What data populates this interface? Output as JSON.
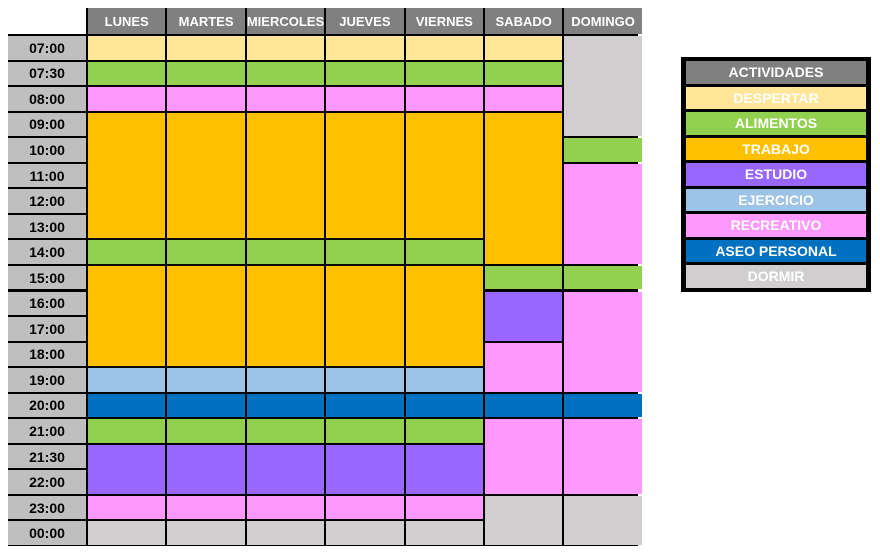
{
  "days": [
    "LUNES",
    "MARTES",
    "MIERCOLES",
    "JUEVES",
    "VIERNES",
    "SABADO",
    "DOMINGO"
  ],
  "times": [
    "07:00",
    "07:30",
    "08:00",
    "09:00",
    "10:00",
    "11:00",
    "12:00",
    "13:00",
    "14:00",
    "15:00",
    "16:00",
    "17:00",
    "18:00",
    "19:00",
    "20:00",
    "21:00",
    "21:30",
    "22:00",
    "23:00",
    "00:00"
  ],
  "legend": {
    "title": "ACTIVIDADES",
    "items": [
      {
        "key": "despertar",
        "label": "DESPERTAR",
        "color": "#ffe699"
      },
      {
        "key": "alimentos",
        "label": "ALIMENTOS",
        "color": "#92d050"
      },
      {
        "key": "trabajo",
        "label": "TRABAJO",
        "color": "#ffc000"
      },
      {
        "key": "estudio",
        "label": "ESTUDIO",
        "color": "#9966ff"
      },
      {
        "key": "ejercicio",
        "label": "EJERCICIO",
        "color": "#9dc3e6"
      },
      {
        "key": "recreativo",
        "label": "RECREATIVO",
        "color": "#ff99ff"
      },
      {
        "key": "aseo",
        "label": "ASEO PERSONAL",
        "color": "#0070c0"
      },
      {
        "key": "dormir",
        "label": "DORMIR",
        "color": "#d0cece"
      }
    ]
  },
  "schedule": [
    [
      [
        "despertar",
        0,
        0
      ],
      [
        "alimentos",
        1,
        1
      ],
      [
        "recreativo",
        2,
        2
      ],
      [
        "trabajo",
        3,
        7
      ],
      [
        "alimentos",
        8,
        8
      ],
      [
        "trabajo",
        9,
        12
      ],
      [
        "ejercicio",
        13,
        13
      ],
      [
        "aseo",
        14,
        14
      ],
      [
        "alimentos",
        15,
        15
      ],
      [
        "estudio",
        16,
        17
      ],
      [
        "recreativo",
        18,
        18
      ],
      [
        "dormir",
        19,
        19
      ]
    ],
    [
      [
        "despertar",
        0,
        0
      ],
      [
        "alimentos",
        1,
        1
      ],
      [
        "recreativo",
        2,
        2
      ],
      [
        "trabajo",
        3,
        7
      ],
      [
        "alimentos",
        8,
        8
      ],
      [
        "trabajo",
        9,
        12
      ],
      [
        "ejercicio",
        13,
        13
      ],
      [
        "aseo",
        14,
        14
      ],
      [
        "alimentos",
        15,
        15
      ],
      [
        "estudio",
        16,
        17
      ],
      [
        "recreativo",
        18,
        18
      ],
      [
        "dormir",
        19,
        19
      ]
    ],
    [
      [
        "despertar",
        0,
        0
      ],
      [
        "alimentos",
        1,
        1
      ],
      [
        "recreativo",
        2,
        2
      ],
      [
        "trabajo",
        3,
        7
      ],
      [
        "alimentos",
        8,
        8
      ],
      [
        "trabajo",
        9,
        12
      ],
      [
        "ejercicio",
        13,
        13
      ],
      [
        "aseo",
        14,
        14
      ],
      [
        "alimentos",
        15,
        15
      ],
      [
        "estudio",
        16,
        17
      ],
      [
        "recreativo",
        18,
        18
      ],
      [
        "dormir",
        19,
        19
      ]
    ],
    [
      [
        "despertar",
        0,
        0
      ],
      [
        "alimentos",
        1,
        1
      ],
      [
        "recreativo",
        2,
        2
      ],
      [
        "trabajo",
        3,
        7
      ],
      [
        "alimentos",
        8,
        8
      ],
      [
        "trabajo",
        9,
        12
      ],
      [
        "ejercicio",
        13,
        13
      ],
      [
        "aseo",
        14,
        14
      ],
      [
        "alimentos",
        15,
        15
      ],
      [
        "estudio",
        16,
        17
      ],
      [
        "recreativo",
        18,
        18
      ],
      [
        "dormir",
        19,
        19
      ]
    ],
    [
      [
        "despertar",
        0,
        0
      ],
      [
        "alimentos",
        1,
        1
      ],
      [
        "recreativo",
        2,
        2
      ],
      [
        "trabajo",
        3,
        7
      ],
      [
        "alimentos",
        8,
        8
      ],
      [
        "trabajo",
        9,
        12
      ],
      [
        "ejercicio",
        13,
        13
      ],
      [
        "aseo",
        14,
        14
      ],
      [
        "alimentos",
        15,
        15
      ],
      [
        "estudio",
        16,
        17
      ],
      [
        "recreativo",
        18,
        18
      ],
      [
        "dormir",
        19,
        19
      ]
    ],
    [
      [
        "despertar",
        0,
        0
      ],
      [
        "alimentos",
        1,
        1
      ],
      [
        "recreativo",
        2,
        2
      ],
      [
        "trabajo",
        3,
        8
      ],
      [
        "alimentos",
        9,
        9
      ],
      [
        "estudio",
        10,
        11
      ],
      [
        "recreativo",
        12,
        13
      ],
      [
        "aseo",
        14,
        14
      ],
      [
        "recreativo",
        15,
        17
      ],
      [
        "dormir",
        18,
        19
      ]
    ],
    [
      [
        "dormir",
        0,
        3
      ],
      [
        "alimentos",
        4,
        4
      ],
      [
        "recreativo",
        5,
        8
      ],
      [
        "alimentos",
        9,
        9
      ],
      [
        "recreativo",
        10,
        13
      ],
      [
        "aseo",
        14,
        14
      ],
      [
        "recreativo",
        15,
        17
      ],
      [
        "dormir",
        18,
        19
      ]
    ]
  ]
}
